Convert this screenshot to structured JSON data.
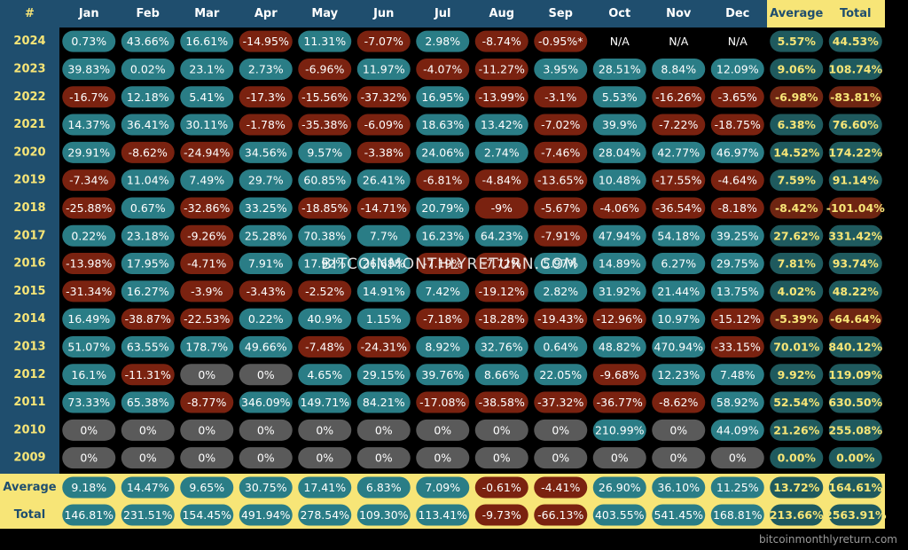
{
  "watermark": "BITCOINMONTHLYRETURN.COM",
  "footer": "bitcoinmonthlyreturn.com",
  "colors": {
    "header_bg": "#1f4e6e",
    "header_text": "#ffffff",
    "summary_bg": "#f7e577",
    "summary_text": "#1f4e6e",
    "year_text": "#f7e577",
    "positive": "#2a7d86",
    "negative": "#7a2210",
    "zero": "#5a5a5a",
    "summary_positive": "#1f5a5e",
    "summary_negative": "#6e2512",
    "highlight_text": "#f7e577"
  },
  "chart_data": {
    "type": "heatmap",
    "corner": "#",
    "months": [
      "Jan",
      "Feb",
      "Mar",
      "Apr",
      "May",
      "Jun",
      "Jul",
      "Aug",
      "Sep",
      "Oct",
      "Nov",
      "Dec"
    ],
    "summary_columns": [
      "Average",
      "Total"
    ],
    "rows": [
      {
        "year": "2024",
        "values": [
          "0.73%",
          "43.66%",
          "16.61%",
          "-14.95%",
          "11.31%",
          "-7.07%",
          "2.98%",
          "-8.74%",
          "-0.95%*",
          "N/A",
          "N/A",
          "N/A"
        ],
        "average": "5.57%",
        "total": "44.53%"
      },
      {
        "year": "2023",
        "values": [
          "39.83%",
          "0.02%",
          "23.1%",
          "2.73%",
          "-6.96%",
          "11.97%",
          "-4.07%",
          "-11.27%",
          "3.95%",
          "28.51%",
          "8.84%",
          "12.09%"
        ],
        "average": "9.06%",
        "total": "108.74%"
      },
      {
        "year": "2022",
        "values": [
          "-16.7%",
          "12.18%",
          "5.41%",
          "-17.3%",
          "-15.56%",
          "-37.32%",
          "16.95%",
          "-13.99%",
          "-3.1%",
          "5.53%",
          "-16.26%",
          "-3.65%"
        ],
        "average": "-6.98%",
        "total": "-83.81%"
      },
      {
        "year": "2021",
        "values": [
          "14.37%",
          "36.41%",
          "30.11%",
          "-1.78%",
          "-35.38%",
          "-6.09%",
          "18.63%",
          "13.42%",
          "-7.02%",
          "39.9%",
          "-7.22%",
          "-18.75%"
        ],
        "average": "6.38%",
        "total": "76.60%"
      },
      {
        "year": "2020",
        "values": [
          "29.91%",
          "-8.62%",
          "-24.94%",
          "34.56%",
          "9.57%",
          "-3.38%",
          "24.06%",
          "2.74%",
          "-7.46%",
          "28.04%",
          "42.77%",
          "46.97%"
        ],
        "average": "14.52%",
        "total": "174.22%"
      },
      {
        "year": "2019",
        "values": [
          "-7.34%",
          "11.04%",
          "7.49%",
          "29.7%",
          "60.85%",
          "26.41%",
          "-6.81%",
          "-4.84%",
          "-13.65%",
          "10.48%",
          "-17.55%",
          "-4.64%"
        ],
        "average": "7.59%",
        "total": "91.14%"
      },
      {
        "year": "2018",
        "values": [
          "-25.88%",
          "0.67%",
          "-32.86%",
          "33.25%",
          "-18.85%",
          "-14.71%",
          "20.79%",
          "-9%",
          "-5.67%",
          "-4.06%",
          "-36.54%",
          "-8.18%"
        ],
        "average": "-8.42%",
        "total": "-101.04%"
      },
      {
        "year": "2017",
        "values": [
          "0.22%",
          "23.18%",
          "-9.26%",
          "25.28%",
          "70.38%",
          "7.7%",
          "16.23%",
          "64.23%",
          "-7.91%",
          "47.94%",
          "54.18%",
          "39.25%"
        ],
        "average": "27.62%",
        "total": "331.42%"
      },
      {
        "year": "2016",
        "values": [
          "-13.98%",
          "17.95%",
          "-4.71%",
          "7.91%",
          "17.92%",
          "26.68%",
          "-7.19%",
          "-7.72%",
          "5.97%",
          "14.89%",
          "6.27%",
          "29.75%"
        ],
        "average": "7.81%",
        "total": "93.74%"
      },
      {
        "year": "2015",
        "values": [
          "-31.34%",
          "16.27%",
          "-3.9%",
          "-3.43%",
          "-2.52%",
          "14.91%",
          "7.42%",
          "-19.12%",
          "2.82%",
          "31.92%",
          "21.44%",
          "13.75%"
        ],
        "average": "4.02%",
        "total": "48.22%"
      },
      {
        "year": "2014",
        "values": [
          "16.49%",
          "-38.87%",
          "-22.53%",
          "0.22%",
          "40.9%",
          "1.15%",
          "-7.18%",
          "-18.28%",
          "-19.43%",
          "-12.96%",
          "10.97%",
          "-15.12%"
        ],
        "average": "-5.39%",
        "total": "-64.64%"
      },
      {
        "year": "2013",
        "values": [
          "51.07%",
          "63.55%",
          "178.7%",
          "49.66%",
          "-7.48%",
          "-24.31%",
          "8.92%",
          "32.76%",
          "0.64%",
          "48.82%",
          "470.94%",
          "-33.15%"
        ],
        "average": "70.01%",
        "total": "840.12%"
      },
      {
        "year": "2012",
        "values": [
          "16.1%",
          "-11.31%",
          "0%",
          "0%",
          "4.65%",
          "29.15%",
          "39.76%",
          "8.66%",
          "22.05%",
          "-9.68%",
          "12.23%",
          "7.48%"
        ],
        "average": "9.92%",
        "total": "119.09%"
      },
      {
        "year": "2011",
        "values": [
          "73.33%",
          "65.38%",
          "-8.77%",
          "346.09%",
          "149.71%",
          "84.21%",
          "-17.08%",
          "-38.58%",
          "-37.32%",
          "-36.77%",
          "-8.62%",
          "58.92%"
        ],
        "average": "52.54%",
        "total": "630.50%"
      },
      {
        "year": "2010",
        "values": [
          "0%",
          "0%",
          "0%",
          "0%",
          "0%",
          "0%",
          "0%",
          "0%",
          "0%",
          "210.99%",
          "0%",
          "44.09%"
        ],
        "average": "21.26%",
        "total": "255.08%"
      },
      {
        "year": "2009",
        "values": [
          "0%",
          "0%",
          "0%",
          "0%",
          "0%",
          "0%",
          "0%",
          "0%",
          "0%",
          "0%",
          "0%",
          "0%"
        ],
        "average": "0.00%",
        "total": "0.00%"
      }
    ],
    "summary_rows": [
      {
        "label": "Average",
        "values": [
          "9.18%",
          "14.47%",
          "9.65%",
          "30.75%",
          "17.41%",
          "6.83%",
          "7.09%",
          "-0.61%",
          "-4.41%",
          "26.90%",
          "36.10%",
          "11.25%"
        ],
        "average": "13.72%",
        "total": "164.61%"
      },
      {
        "label": "Total",
        "values": [
          "146.81%",
          "231.51%",
          "154.45%",
          "491.94%",
          "278.54%",
          "109.30%",
          "113.41%",
          "-9.73%",
          "-66.13%",
          "403.55%",
          "541.45%",
          "168.81%"
        ],
        "average": "213.66%",
        "total": "2563.91%"
      }
    ]
  }
}
